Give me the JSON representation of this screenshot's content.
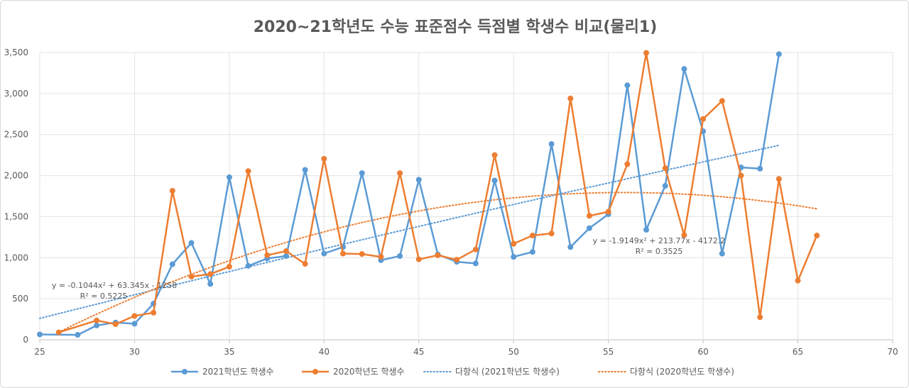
{
  "chart_data": {
    "type": "scatter",
    "title": "2020~21학년도 수능 표준점수 득점별 학생수 비교(물리1)",
    "xlim": [
      25,
      70
    ],
    "ylim": [
      0,
      3500
    ],
    "x_ticks": [
      25,
      30,
      35,
      40,
      45,
      50,
      55,
      60,
      65,
      70
    ],
    "y_ticks": [
      0,
      500,
      1000,
      1500,
      2000,
      2500,
      3000,
      3500
    ],
    "y_tick_labels": [
      "0",
      "500",
      "1,000",
      "1,500",
      "2,000",
      "2,500",
      "3,000",
      "3,500"
    ],
    "grid": true,
    "legend_position": "bottom",
    "series": [
      {
        "name": "2021학년도 학생수",
        "color": "#5b9bd5",
        "x": [
          25,
          27,
          28,
          29,
          30,
          31,
          32,
          33,
          34,
          35,
          36,
          37,
          38,
          39,
          40,
          41,
          42,
          43,
          44,
          45,
          46,
          47,
          48,
          49,
          50,
          51,
          52,
          53,
          54,
          55,
          56,
          57,
          58,
          59,
          60,
          61,
          62,
          63,
          64
        ],
        "y": [
          65,
          60,
          175,
          210,
          195,
          440,
          920,
          1180,
          680,
          1980,
          900,
          990,
          1020,
          2070,
          1050,
          1130,
          2030,
          970,
          1020,
          1950,
          1040,
          950,
          930,
          1940,
          1010,
          1070,
          2385,
          1130,
          1360,
          1530,
          3100,
          1340,
          1875,
          3300,
          2540,
          1050,
          2100,
          2085,
          3480
        ]
      },
      {
        "name": "2020학년도 학생수",
        "color": "#ed7d31",
        "x": [
          26,
          28,
          29,
          30,
          31,
          32,
          33,
          34,
          35,
          36,
          37,
          38,
          39,
          40,
          41,
          42,
          43,
          44,
          45,
          46,
          47,
          48,
          49,
          50,
          51,
          52,
          53,
          54,
          55,
          56,
          57,
          58,
          59,
          60,
          61,
          62,
          63,
          64,
          65,
          66
        ],
        "y": [
          90,
          235,
          190,
          290,
          330,
          1815,
          770,
          800,
          890,
          2055,
          1030,
          1080,
          925,
          2205,
          1050,
          1045,
          1010,
          2030,
          980,
          1030,
          975,
          1100,
          2250,
          1170,
          1270,
          1295,
          2940,
          1510,
          1560,
          2140,
          3495,
          2090,
          1275,
          2690,
          2910,
          2000,
          275,
          1960,
          720,
          1270
        ]
      }
    ],
    "trendlines": [
      {
        "name": "다항식 (2021학년도 학생수)",
        "color": "#5b9bd5",
        "type": "polynomial",
        "coefficients": [
          -0.1044,
          63.345,
          -1258
        ],
        "x_range": [
          25,
          64
        ],
        "equation": "y = -0.1044x² + 63.345x - 1258",
        "r_squared": "R² = 0.5225"
      },
      {
        "name": "다항식 (2020학년도 학생수)",
        "color": "#ed7d31",
        "type": "polynomial",
        "coefficients": [
          -1.9149,
          213.77,
          -4172.2
        ],
        "x_range": [
          26,
          66
        ],
        "equation": "y = -1.9149x² + 213.77x - 4172.2",
        "r_squared": "R² = 0.3525"
      }
    ]
  }
}
